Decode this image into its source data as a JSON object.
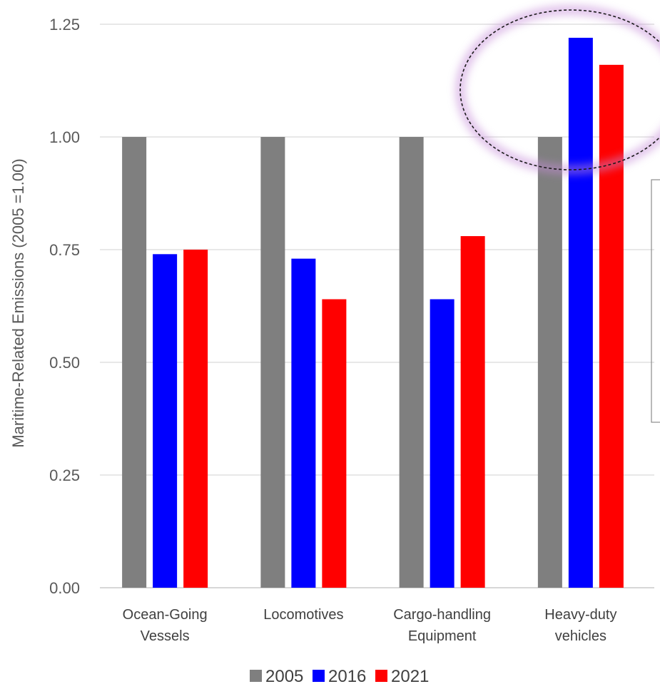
{
  "chart_data": {
    "type": "bar",
    "categories": [
      [
        "Ocean-Going",
        "Vessels"
      ],
      [
        "Locomotives"
      ],
      [
        "Cargo-handling",
        "Equipment"
      ],
      [
        "Heavy-duty",
        "vehicles"
      ]
    ],
    "series": [
      {
        "name": "2005",
        "color": "#7f7f7f",
        "values": [
          1.0,
          1.0,
          1.0,
          1.0
        ]
      },
      {
        "name": "2016",
        "color": "#0000ff",
        "values": [
          0.74,
          0.73,
          0.64,
          1.22
        ]
      },
      {
        "name": "2021",
        "color": "#ff0000",
        "values": [
          0.75,
          0.64,
          0.78,
          1.16
        ]
      }
    ],
    "ylabel": "Maritime-Related Emissions (2005 =1.00)",
    "ylim": [
      0,
      1.25
    ],
    "yticks": [
      "0.00",
      "0.25",
      "0.50",
      "0.75",
      "1.00",
      "1.25"
    ],
    "grid": true,
    "legend": "bottom",
    "annotation": "dashed ellipse highlighting Heavy-duty vehicles 2016 and 2021 bars"
  }
}
